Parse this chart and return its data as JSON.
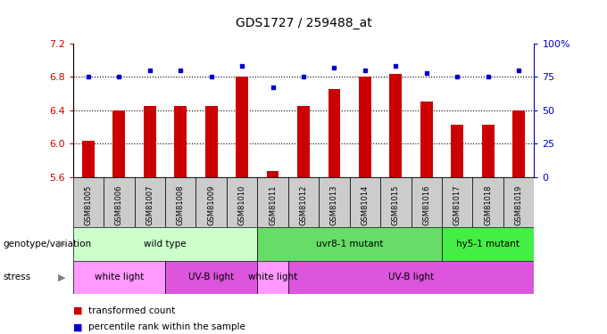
{
  "title": "GDS1727 / 259488_at",
  "samples": [
    "GSM81005",
    "GSM81006",
    "GSM81007",
    "GSM81008",
    "GSM81009",
    "GSM81010",
    "GSM81011",
    "GSM81012",
    "GSM81013",
    "GSM81014",
    "GSM81015",
    "GSM81016",
    "GSM81017",
    "GSM81018",
    "GSM81019"
  ],
  "bar_values": [
    6.03,
    6.4,
    6.45,
    6.45,
    6.45,
    6.8,
    5.67,
    6.45,
    6.65,
    6.8,
    6.83,
    6.5,
    6.23,
    6.23,
    6.4
  ],
  "dot_values": [
    75,
    75,
    80,
    80,
    75,
    83,
    67,
    75,
    82,
    80,
    83,
    78,
    75,
    75,
    80
  ],
  "ylim_left": [
    5.6,
    7.2
  ],
  "ylim_right": [
    0,
    100
  ],
  "yticks_left": [
    5.6,
    6.0,
    6.4,
    6.8,
    7.2
  ],
  "yticks_right": [
    0,
    25,
    50,
    75,
    100
  ],
  "bar_color": "#cc0000",
  "dot_color": "#0000cc",
  "left_tick_color": "#cc0000",
  "right_tick_color": "#0000cc",
  "gridline_y": [
    6.0,
    6.4,
    6.8
  ],
  "genotype_groups": [
    {
      "label": "wild type",
      "start": 0,
      "end": 6,
      "color": "#ccffcc"
    },
    {
      "label": "uvr8-1 mutant",
      "start": 6,
      "end": 12,
      "color": "#66dd66"
    },
    {
      "label": "hy5-1 mutant",
      "start": 12,
      "end": 15,
      "color": "#44ee44"
    }
  ],
  "stress_groups": [
    {
      "label": "white light",
      "start": 0,
      "end": 3,
      "color": "#ff99ff"
    },
    {
      "label": "UV-B light",
      "start": 3,
      "end": 6,
      "color": "#dd55dd"
    },
    {
      "label": "white light",
      "start": 6,
      "end": 7,
      "color": "#ff99ff"
    },
    {
      "label": "UV-B light",
      "start": 7,
      "end": 15,
      "color": "#dd55dd"
    }
  ],
  "xtick_bg_color": "#cccccc",
  "fig_bg": "#ffffff",
  "bar_width": 0.4
}
